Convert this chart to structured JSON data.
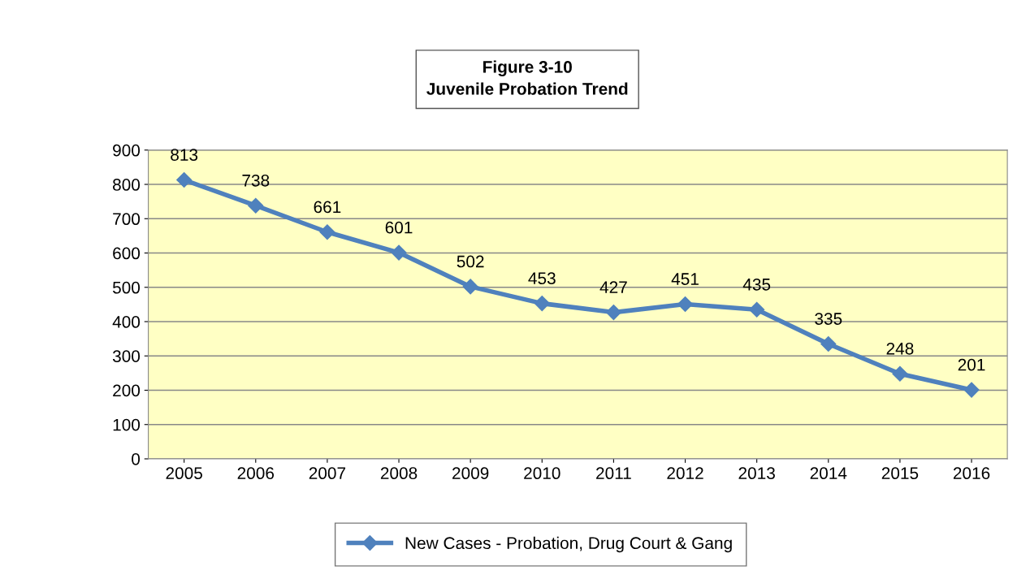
{
  "chart_data": {
    "type": "line",
    "title": "Figure 3-10",
    "subtitle": "Juvenile Probation Trend",
    "categories": [
      "2005",
      "2006",
      "2007",
      "2008",
      "2009",
      "2010",
      "2011",
      "2012",
      "2013",
      "2014",
      "2015",
      "2016"
    ],
    "series": [
      {
        "name": "New Cases - Probation, Drug Court & Gang",
        "color": "#4f81bd",
        "values": [
          813,
          738,
          661,
          601,
          502,
          453,
          427,
          451,
          435,
          335,
          248,
          201
        ]
      }
    ],
    "ylim": [
      0,
      900
    ],
    "yticks": [
      0,
      100,
      200,
      300,
      400,
      500,
      600,
      700,
      800,
      900
    ],
    "grid": "y",
    "legend": "bottom",
    "marker": "diamond",
    "line_style": "solid",
    "data_labels": true
  }
}
